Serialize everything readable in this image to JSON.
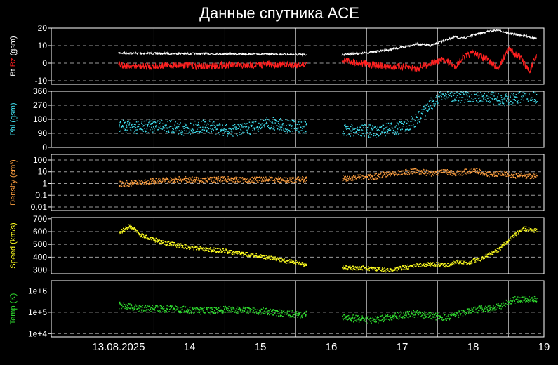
{
  "chart_data": [
    {
      "type": "line",
      "title": "Данные спутника ACE",
      "panel": "bt-bz",
      "ylabel_parts": [
        {
          "text": "Bt ",
          "color": "#ffffff"
        },
        {
          "text": "Bz",
          "color": "#ff2020"
        },
        {
          "text": " (gsm)",
          "color": "#ffffff"
        }
      ],
      "yscale": "linear",
      "ylim": [
        -12,
        20
      ],
      "yticks": [
        -10,
        0,
        10,
        20
      ],
      "ytick_labels": [
        "-10",
        "0",
        "10",
        "20"
      ],
      "dashed_y": [
        -10,
        0,
        10
      ],
      "series": [
        {
          "name": "Bt",
          "color": "#ffffff",
          "x": [
            0,
            0.4,
            0.8,
            1.2,
            1.6,
            2.0,
            2.4,
            2.65,
            3.15,
            3.4,
            3.6,
            3.8,
            4.0,
            4.2,
            4.4,
            4.6,
            4.75,
            4.85,
            5.0,
            5.2,
            5.35,
            5.5,
            5.65,
            5.8,
            5.9
          ],
          "y": [
            5.8,
            5.6,
            5.5,
            5.4,
            5.3,
            5.2,
            5,
            4.8,
            5,
            5.5,
            6.5,
            7.5,
            9,
            11,
            10,
            13,
            15,
            14,
            16,
            18,
            19,
            17,
            16,
            15,
            14
          ]
        },
        {
          "name": "Bz",
          "color": "#ff2020",
          "x": [
            0,
            0.3,
            0.6,
            0.9,
            1.2,
            1.5,
            1.8,
            2.1,
            2.4,
            2.65,
            3.15,
            3.4,
            3.6,
            3.8,
            4.0,
            4.2,
            4.4,
            4.6,
            4.75,
            4.85,
            5.0,
            5.2,
            5.35,
            5.5,
            5.65,
            5.8,
            5.9
          ],
          "y": [
            -1,
            -2,
            -1.5,
            -1,
            -2,
            -1,
            -1.5,
            -0.5,
            -1,
            -1,
            2,
            0,
            -1,
            -2,
            -2,
            -3,
            0,
            2,
            -2,
            3,
            6,
            2,
            -3,
            8,
            4,
            -5,
            5
          ]
        }
      ]
    },
    {
      "type": "scatter",
      "panel": "phi",
      "ylabel": "Phi (gsm)",
      "ylabel_color": "#40e0f0",
      "yscale": "linear",
      "ylim": [
        0,
        360
      ],
      "yticks": [
        0,
        90,
        180,
        270,
        360
      ],
      "ytick_labels": [
        "0",
        "90",
        "180",
        "270",
        "360"
      ],
      "dashed_y": [
        90,
        180,
        270
      ],
      "series": [
        {
          "name": "Phi",
          "color": "#40e0f0",
          "x": [
            0,
            0.3,
            0.6,
            0.9,
            1.2,
            1.5,
            1.8,
            2.1,
            2.4,
            2.65,
            3.15,
            3.4,
            3.6,
            3.8,
            4.0,
            4.2,
            4.4,
            4.5,
            4.6,
            4.8,
            5.0,
            5.2,
            5.4,
            5.6,
            5.8,
            5.9
          ],
          "y": [
            140,
            130,
            150,
            120,
            140,
            110,
            120,
            160,
            140,
            130,
            110,
            115,
            105,
            120,
            130,
            180,
            280,
            320,
            350,
            320,
            330,
            330,
            300,
            320,
            340,
            320
          ]
        }
      ]
    },
    {
      "type": "scatter",
      "panel": "density",
      "ylabel": "Density (cm³)",
      "ylabel_color": "#ffa040",
      "yscale": "log",
      "ylim": [
        0.005,
        300
      ],
      "yticks": [
        0.01,
        0.1,
        1,
        10,
        100
      ],
      "ytick_labels": [
        "0.01",
        "0.1",
        "1",
        "10",
        "100"
      ],
      "dashed_y": [
        0.01,
        0.1,
        1,
        10,
        100
      ],
      "series": [
        {
          "name": "Density",
          "color": "#ffa040",
          "x": [
            0,
            0.3,
            0.6,
            0.9,
            1.2,
            1.5,
            1.8,
            2.1,
            2.4,
            2.65,
            3.15,
            3.4,
            3.6,
            3.8,
            4.0,
            4.2,
            4.4,
            4.6,
            4.8,
            5.0,
            5.2,
            5.4,
            5.6,
            5.8,
            5.9
          ],
          "y": [
            1,
            1.3,
            2,
            2.5,
            2.2,
            2.6,
            2.2,
            2.5,
            2.2,
            2.6,
            3,
            3.5,
            4,
            8,
            10,
            12,
            8,
            10,
            8,
            15,
            7,
            8,
            5,
            5,
            4.5
          ]
        }
      ]
    },
    {
      "type": "scatter",
      "panel": "speed",
      "ylabel": "Speed (km/s)",
      "ylabel_color": "#ffff20",
      "yscale": "linear",
      "ylim": [
        270,
        710
      ],
      "yticks": [
        300,
        400,
        500,
        600,
        700
      ],
      "ytick_labels": [
        "300",
        "400",
        "500",
        "600",
        "700"
      ],
      "dashed_y": [
        300,
        400,
        500,
        600
      ],
      "series": [
        {
          "name": "Speed",
          "color": "#ffff20",
          "x": [
            0,
            0.15,
            0.3,
            0.6,
            1.0,
            1.5,
            2.0,
            2.4,
            2.65,
            3.15,
            3.4,
            3.6,
            3.8,
            4.0,
            4.2,
            4.4,
            4.6,
            4.8,
            4.95,
            5.0,
            5.1,
            5.2,
            5.35,
            5.5,
            5.7,
            5.9
          ],
          "y": [
            590,
            650,
            580,
            520,
            480,
            450,
            410,
            370,
            345,
            320,
            320,
            310,
            300,
            320,
            340,
            350,
            340,
            370,
            360,
            380,
            390,
            420,
            460,
            540,
            630,
            610
          ]
        }
      ]
    },
    {
      "type": "scatter",
      "panel": "temp",
      "ylabel": "Temp (K)",
      "ylabel_color": "#30e030",
      "yscale": "log",
      "ylim": [
        7000,
        3000000
      ],
      "yticks": [
        10000,
        100000,
        1000000
      ],
      "ytick_labels": [
        "1e+4",
        "1e+5",
        "1e+6"
      ],
      "dashed_y": [
        10000,
        100000,
        1000000
      ],
      "series": [
        {
          "name": "Temp",
          "color": "#30e030",
          "x": [
            0,
            0.3,
            0.6,
            0.9,
            1.2,
            1.5,
            1.8,
            2.1,
            2.4,
            2.65,
            3.15,
            3.4,
            3.6,
            3.8,
            4.0,
            4.2,
            4.4,
            4.6,
            4.8,
            5.0,
            5.2,
            5.4,
            5.5,
            5.7,
            5.9
          ],
          "y": [
            220000,
            160000,
            150000,
            140000,
            120000,
            140000,
            130000,
            110000,
            90000,
            80000,
            60000,
            50000,
            45000,
            60000,
            80000,
            90000,
            70000,
            60000,
            90000,
            130000,
            160000,
            200000,
            350000,
            450000,
            400000
          ]
        }
      ]
    }
  ],
  "xaxis": {
    "xlim": [
      -0.95,
      6.0
    ],
    "ticks": [
      0,
      1,
      2,
      3,
      4,
      5,
      6
    ],
    "tick_labels": [
      "13.08.2025",
      "14",
      "15",
      "16",
      "17",
      "18",
      "19"
    ],
    "gridlines": [
      0.5,
      1.5,
      2.5,
      3.5,
      4.5,
      5.5
    ]
  },
  "colors": {
    "background": "#000000",
    "frame": "#ffffff",
    "grid": "#9a9a9a"
  }
}
